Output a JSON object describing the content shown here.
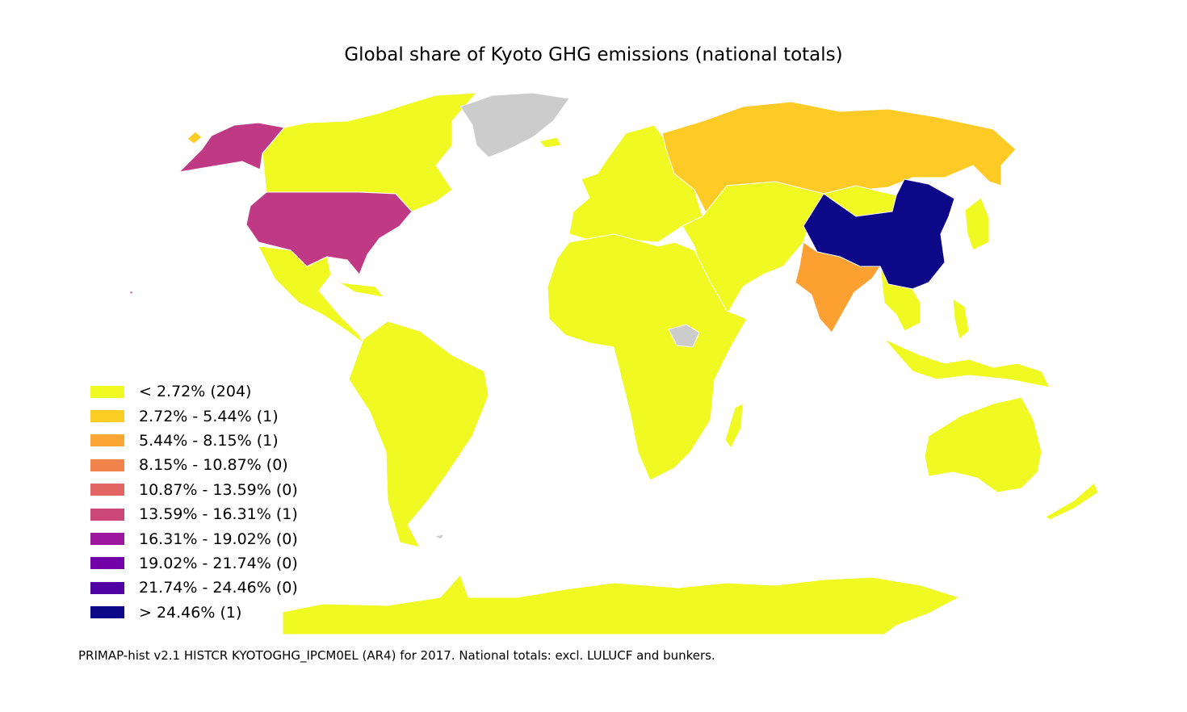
{
  "title": "Global share of Kyoto GHG emissions (national totals)",
  "source_note": "PRIMAP-hist v2.1 HISTCR KYOTOGHG_IPCM0EL (AR4) for 2017. National totals: excl. LULUCF and bunkers.",
  "colors": {
    "no_data": "#cccccc",
    "border": "#ffffff"
  },
  "legend": [
    {
      "label": "< 2.72% (204)",
      "color": "#f0f921"
    },
    {
      "label": "2.72% - 5.44% (1)",
      "color": "#fccd25"
    },
    {
      "label": "5.44% - 8.15% (1)",
      "color": "#fca636"
    },
    {
      "label": "8.15% - 10.87% (0)",
      "color": "#f2844b"
    },
    {
      "label": "10.87% - 13.59% (0)",
      "color": "#e16462"
    },
    {
      "label": "13.59% - 16.31% (1)",
      "color": "#cc4778"
    },
    {
      "label": "16.31% - 19.02% (0)",
      "color": "#9c179e"
    },
    {
      "label": "19.02% - 21.74% (0)",
      "color": "#7201a8"
    },
    {
      "label": "21.74% - 24.46% (0)",
      "color": "#5002a2"
    },
    {
      "label": "> 24.46% (1)",
      "color": "#0d0887"
    }
  ],
  "highlighted_regions": [
    {
      "name": "China",
      "legend_class": 9
    },
    {
      "name": "United States",
      "legend_class": 5
    },
    {
      "name": "India",
      "legend_class": 2
    },
    {
      "name": "Russia",
      "legend_class": 1
    },
    {
      "name": "Greenland",
      "legend_class": "no_data"
    },
    {
      "name": "South Sudan",
      "legend_class": "no_data"
    }
  ]
}
